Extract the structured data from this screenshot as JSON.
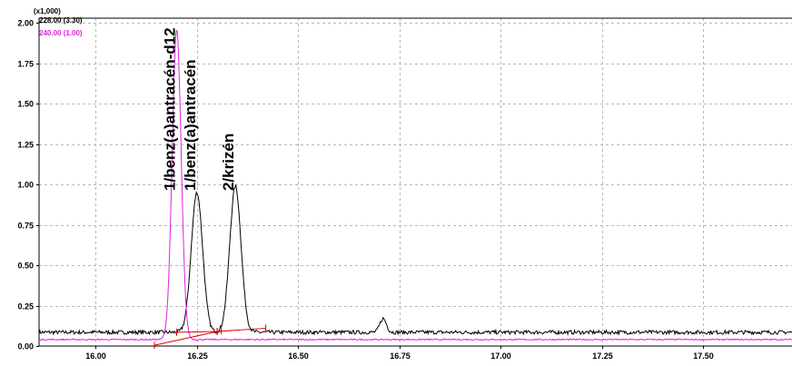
{
  "chart_data": {
    "type": "line",
    "scale_label": "(x1,000)",
    "xlim": [
      15.86,
      17.72
    ],
    "ylim": [
      0,
      2.03
    ],
    "x_ticks": [
      16.0,
      16.25,
      16.5,
      16.75,
      17.0,
      17.25,
      17.5
    ],
    "x_tick_labels": [
      "16.00",
      "16.25",
      "16.50",
      "16.75",
      "17.00",
      "17.25",
      "17.50"
    ],
    "y_ticks": [
      0,
      0.25,
      0.5,
      0.75,
      1.0,
      1.25,
      1.5,
      1.75,
      2.0
    ],
    "y_tick_labels": [
      "0.00",
      "0.25",
      "0.50",
      "0.75",
      "1.00",
      "1.25",
      "1.50",
      "1.75",
      "2.00"
    ],
    "grid": true,
    "legend_placement": "top-left",
    "series": [
      {
        "name": "228.00 (3.30)",
        "color": "#000000",
        "baseline": 0.085,
        "noise": 0.012,
        "peaks": [
          {
            "x": 16.25,
            "y": 0.95,
            "sigma": 0.014
          },
          {
            "x": 16.345,
            "y": 0.99,
            "sigma": 0.014
          },
          {
            "x": 16.71,
            "y": 0.17,
            "sigma": 0.008
          }
        ]
      },
      {
        "name": "240.00 (1.00)",
        "color": "#e020e0",
        "baseline": 0.04,
        "noise": 0.004,
        "peaks": [
          {
            "x": 16.2,
            "y": 1.96,
            "sigma": 0.011
          }
        ]
      }
    ],
    "integration_baselines": [
      {
        "x1": 16.145,
        "y1": 0.005,
        "x2": 16.31,
        "y2": 0.095
      },
      {
        "x1": 16.2,
        "y1": 0.085,
        "x2": 16.3,
        "y2": 0.09
      },
      {
        "x1": 16.3,
        "y1": 0.09,
        "x2": 16.42,
        "y2": 0.11
      }
    ],
    "annotations": [
      {
        "text": "1/benz(a)antracén-d12",
        "x": 16.2
      },
      {
        "text": "1/benz(a)antracén",
        "x": 16.25
      },
      {
        "text": "2/krizén",
        "x": 16.345
      }
    ]
  }
}
